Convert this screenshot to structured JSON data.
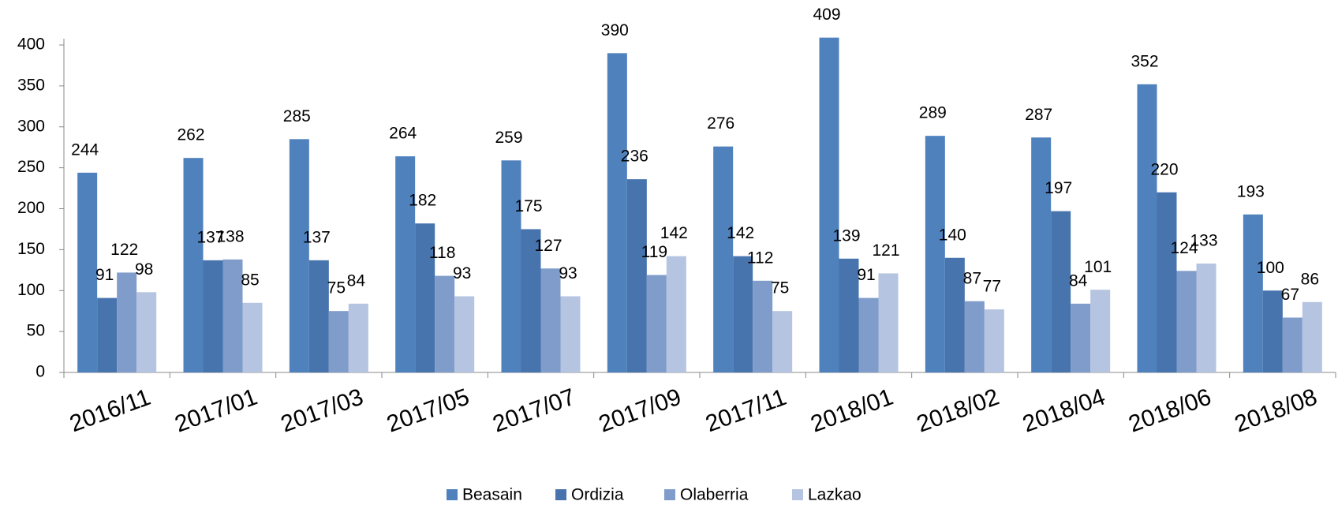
{
  "chart_data": {
    "type": "bar",
    "categories": [
      "2016/11",
      "2017/01",
      "2017/03",
      "2017/05",
      "2017/07",
      "2017/09",
      "2017/11",
      "2018/01",
      "2018/02",
      "2018/04",
      "2018/06",
      "2018/08"
    ],
    "series": [
      {
        "name": "Beasain",
        "color": "#4f81bd",
        "values": [
          244,
          262,
          285,
          264,
          259,
          390,
          276,
          409,
          289,
          287,
          352,
          193
        ]
      },
      {
        "name": "Ordizia",
        "color": "#4774ad",
        "values": [
          91,
          137,
          137,
          182,
          175,
          236,
          142,
          139,
          140,
          197,
          220,
          100
        ]
      },
      {
        "name": "Olaberria",
        "color": "#7f9cca",
        "values": [
          122,
          138,
          75,
          118,
          127,
          119,
          112,
          91,
          87,
          84,
          124,
          67
        ]
      },
      {
        "name": "Lazkao",
        "color": "#b5c4e0",
        "values": [
          98,
          85,
          84,
          93,
          93,
          142,
          75,
          121,
          77,
          101,
          133,
          86
        ]
      }
    ],
    "ylim": [
      0,
      400
    ],
    "yticks": [
      0,
      50,
      100,
      150,
      200,
      250,
      300,
      350,
      400
    ],
    "legend": "bottom"
  }
}
